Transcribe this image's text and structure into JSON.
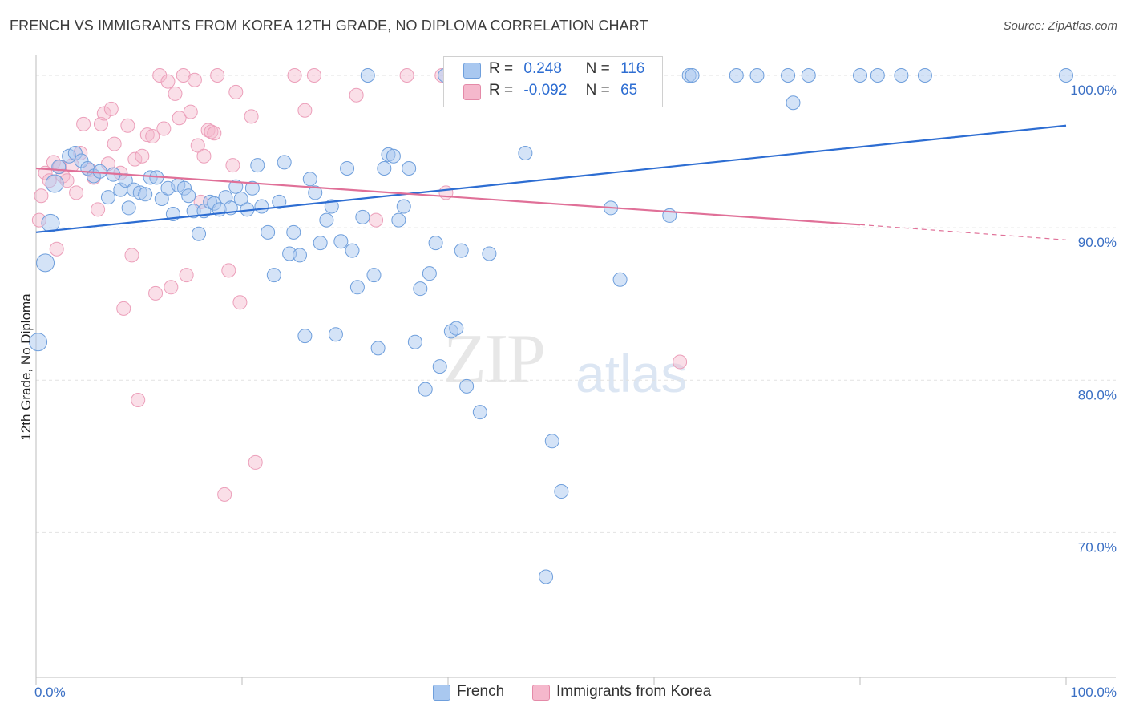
{
  "title": "FRENCH VS IMMIGRANTS FROM KOREA 12TH GRADE, NO DIPLOMA CORRELATION CHART",
  "source": "Source: ZipAtlas.com",
  "watermark": {
    "zip": "ZIP",
    "atlas": "atlas"
  },
  "legend": {
    "r_label": "R =",
    "n_label": "N =",
    "french": {
      "r": "0.248",
      "n": "116",
      "color": "#a9c8f0"
    },
    "korea": {
      "r": "-0.092",
      "n": "65",
      "color": "#f5b8cc"
    }
  },
  "bottom_legend": {
    "french": "French",
    "korea": "Immigrants from Korea"
  },
  "colors": {
    "blue_line": "#2d6dd2",
    "pink_line": "#e07098",
    "blue_dot": "#a9c8f0",
    "pink_dot": "#f5b8cc",
    "tick_label": "#3a6fc4"
  },
  "chart_data": {
    "type": "scatter",
    "title": "FRENCH VS IMMIGRANTS FROM KOREA 12TH GRADE, NO DIPLOMA CORRELATION CHART",
    "xlabel": "",
    "ylabel": "12th Grade, No Diploma",
    "xlim": [
      0,
      100
    ],
    "ylim": [
      60.5,
      101
    ],
    "x_tick_labels": [
      "0.0%",
      "100.0%"
    ],
    "y_ticks": [
      70,
      80,
      90,
      100
    ],
    "y_tick_labels": [
      "70.0%",
      "80.0%",
      "90.0%",
      "100.0%"
    ],
    "grid": "horizontal dashed",
    "series": [
      {
        "name": "French",
        "color": "#a9c8f0",
        "trend": {
          "x": [
            0,
            100
          ],
          "y": [
            89.7,
            96.7
          ]
        },
        "points": [
          [
            0.2,
            82.5
          ],
          [
            0.9,
            87.7
          ],
          [
            1.4,
            90.3
          ],
          [
            1.8,
            92.9
          ],
          [
            2.2,
            94.0
          ],
          [
            3.2,
            94.7
          ],
          [
            3.8,
            94.9
          ],
          [
            4.4,
            94.4
          ],
          [
            5.0,
            93.9
          ],
          [
            5.6,
            93.4
          ],
          [
            6.2,
            93.7
          ],
          [
            7.0,
            92.0
          ],
          [
            7.5,
            93.5
          ],
          [
            8.2,
            92.5
          ],
          [
            8.7,
            93.1
          ],
          [
            9.0,
            91.3
          ],
          [
            9.5,
            92.5
          ],
          [
            10.1,
            92.3
          ],
          [
            10.6,
            92.2
          ],
          [
            11.1,
            93.3
          ],
          [
            11.7,
            93.3
          ],
          [
            12.2,
            91.9
          ],
          [
            12.8,
            92.6
          ],
          [
            13.3,
            90.9
          ],
          [
            13.8,
            92.8
          ],
          [
            14.4,
            92.6
          ],
          [
            14.8,
            92.1
          ],
          [
            15.3,
            91.1
          ],
          [
            15.8,
            89.6
          ],
          [
            16.3,
            91.1
          ],
          [
            16.9,
            91.7
          ],
          [
            17.3,
            91.6
          ],
          [
            17.8,
            91.2
          ],
          [
            18.4,
            92.0
          ],
          [
            18.9,
            91.3
          ],
          [
            19.4,
            92.7
          ],
          [
            19.9,
            91.9
          ],
          [
            20.5,
            91.2
          ],
          [
            21.0,
            92.6
          ],
          [
            21.5,
            94.1
          ],
          [
            21.9,
            91.4
          ],
          [
            22.5,
            89.7
          ],
          [
            23.1,
            86.9
          ],
          [
            23.6,
            91.7
          ],
          [
            24.1,
            94.3
          ],
          [
            24.6,
            88.3
          ],
          [
            25.0,
            89.7
          ],
          [
            25.6,
            88.2
          ],
          [
            26.1,
            82.9
          ],
          [
            26.6,
            93.2
          ],
          [
            27.1,
            92.3
          ],
          [
            27.6,
            89.0
          ],
          [
            28.2,
            90.5
          ],
          [
            28.7,
            91.4
          ],
          [
            29.1,
            83.0
          ],
          [
            29.6,
            89.1
          ],
          [
            30.2,
            93.9
          ],
          [
            30.7,
            88.5
          ],
          [
            31.2,
            86.1
          ],
          [
            31.7,
            90.7
          ],
          [
            32.2,
            100.0
          ],
          [
            32.8,
            86.9
          ],
          [
            33.2,
            82.1
          ],
          [
            33.8,
            93.9
          ],
          [
            34.2,
            94.8
          ],
          [
            34.7,
            94.7
          ],
          [
            35.2,
            90.5
          ],
          [
            35.7,
            91.4
          ],
          [
            36.2,
            93.9
          ],
          [
            36.8,
            82.5
          ],
          [
            37.3,
            86.0
          ],
          [
            37.8,
            79.4
          ],
          [
            38.2,
            87.0
          ],
          [
            38.8,
            89.0
          ],
          [
            39.2,
            80.9
          ],
          [
            39.7,
            100.0
          ],
          [
            40.3,
            83.2
          ],
          [
            40.8,
            83.4
          ],
          [
            41.3,
            88.5
          ],
          [
            41.8,
            79.6
          ],
          [
            42.5,
            100.0
          ],
          [
            43.1,
            77.9
          ],
          [
            44.0,
            88.3
          ],
          [
            44.8,
            100.0
          ],
          [
            47.5,
            94.9
          ],
          [
            49.5,
            67.1
          ],
          [
            50.1,
            76.0
          ],
          [
            51.0,
            72.7
          ],
          [
            53.5,
            100.0
          ],
          [
            55.8,
            91.3
          ],
          [
            56.7,
            86.6
          ],
          [
            58.6,
            100.0
          ],
          [
            61.5,
            90.8
          ],
          [
            63.4,
            100.0
          ],
          [
            63.7,
            100.0
          ],
          [
            68.0,
            100.0
          ],
          [
            70.0,
            100.0
          ],
          [
            73.0,
            100.0
          ],
          [
            73.5,
            98.2
          ],
          [
            75.0,
            100.0
          ],
          [
            80.0,
            100.0
          ],
          [
            81.7,
            100.0
          ],
          [
            84.0,
            100.0
          ],
          [
            86.3,
            100.0
          ],
          [
            100.0,
            100.0
          ]
        ]
      },
      {
        "name": "Immigrants from Korea",
        "color": "#f5b8cc",
        "trend": {
          "x": [
            0,
            80
          ],
          "y": [
            93.9,
            90.2
          ]
        },
        "trend_dashed": {
          "x": [
            80,
            100
          ],
          "y": [
            90.2,
            89.2
          ]
        },
        "points": [
          [
            0.3,
            90.5
          ],
          [
            0.5,
            92.1
          ],
          [
            0.9,
            93.6
          ],
          [
            1.3,
            93.1
          ],
          [
            1.7,
            94.3
          ],
          [
            2.0,
            88.6
          ],
          [
            2.3,
            94.0
          ],
          [
            2.6,
            93.4
          ],
          [
            3.0,
            93.1
          ],
          [
            3.5,
            94.1
          ],
          [
            3.9,
            92.3
          ],
          [
            4.3,
            94.9
          ],
          [
            4.6,
            96.8
          ],
          [
            5.2,
            93.8
          ],
          [
            5.6,
            93.3
          ],
          [
            6.0,
            91.2
          ],
          [
            6.3,
            96.8
          ],
          [
            6.6,
            97.5
          ],
          [
            7.0,
            94.2
          ],
          [
            7.3,
            97.8
          ],
          [
            7.6,
            95.5
          ],
          [
            8.2,
            93.6
          ],
          [
            8.5,
            84.7
          ],
          [
            8.9,
            96.7
          ],
          [
            9.3,
            88.2
          ],
          [
            9.6,
            94.5
          ],
          [
            9.9,
            78.7
          ],
          [
            10.3,
            94.7
          ],
          [
            10.8,
            96.1
          ],
          [
            11.3,
            96.0
          ],
          [
            11.6,
            85.7
          ],
          [
            12.0,
            100.0
          ],
          [
            12.4,
            96.5
          ],
          [
            12.8,
            99.6
          ],
          [
            13.1,
            86.1
          ],
          [
            13.5,
            98.8
          ],
          [
            13.9,
            97.2
          ],
          [
            14.3,
            100.0
          ],
          [
            14.6,
            86.9
          ],
          [
            15.0,
            97.6
          ],
          [
            15.4,
            99.7
          ],
          [
            15.7,
            95.4
          ],
          [
            16.0,
            91.7
          ],
          [
            16.3,
            94.7
          ],
          [
            16.7,
            96.4
          ],
          [
            17.0,
            96.3
          ],
          [
            17.3,
            96.2
          ],
          [
            17.6,
            100.0
          ],
          [
            18.3,
            72.5
          ],
          [
            18.7,
            87.2
          ],
          [
            19.1,
            94.1
          ],
          [
            19.4,
            98.9
          ],
          [
            19.8,
            85.1
          ],
          [
            20.9,
            97.3
          ],
          [
            21.3,
            74.6
          ],
          [
            25.1,
            100.0
          ],
          [
            26.1,
            97.7
          ],
          [
            27.0,
            100.0
          ],
          [
            31.1,
            98.7
          ],
          [
            33.0,
            90.5
          ],
          [
            36.0,
            100.0
          ],
          [
            39.4,
            100.0
          ],
          [
            39.8,
            92.3
          ],
          [
            62.5,
            81.2
          ]
        ]
      }
    ]
  }
}
